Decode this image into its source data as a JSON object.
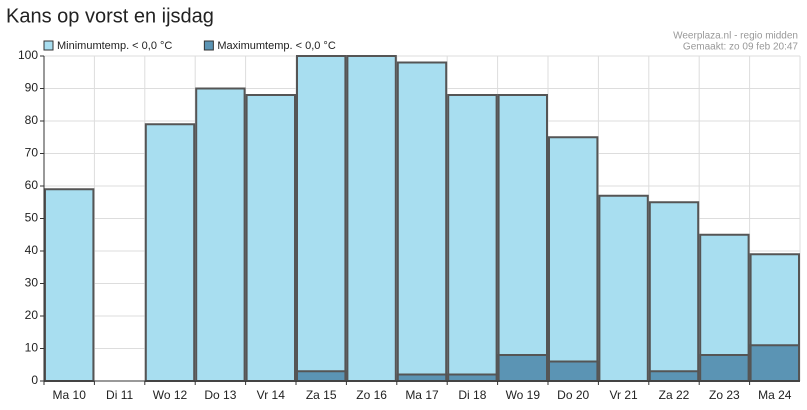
{
  "chart_data": {
    "type": "bar",
    "title": "Kans op vorst en ijsdag",
    "annotations": [
      "Weerplaza.nl - regio midden",
      "Gemaakt: zo 09 feb 20:47"
    ],
    "categories": [
      "Ma 10",
      "Di 11",
      "Wo 12",
      "Do 13",
      "Vr 14",
      "Za 15",
      "Zo 16",
      "Ma 17",
      "Di 18",
      "Wo 19",
      "Do 20",
      "Vr 21",
      "Za 22",
      "Zo 23",
      "Ma 24"
    ],
    "series": [
      {
        "name": "Minimumtemp. < 0,0 °C",
        "color": "#a8def0",
        "values": [
          59,
          0,
          79,
          90,
          88,
          100,
          100,
          98,
          88,
          88,
          75,
          57,
          55,
          45,
          39
        ]
      },
      {
        "name": "Maximumtemp. < 0,0 °C",
        "color": "#5b94b4",
        "values": [
          0,
          0,
          0,
          0,
          0,
          3,
          0,
          2,
          2,
          8,
          6,
          0,
          3,
          8,
          11
        ]
      }
    ],
    "ylim": [
      0,
      100
    ],
    "yticks": [
      0,
      10,
      20,
      30,
      40,
      50,
      60,
      70,
      80,
      90,
      100
    ],
    "grid": true,
    "legend": "top-left"
  }
}
